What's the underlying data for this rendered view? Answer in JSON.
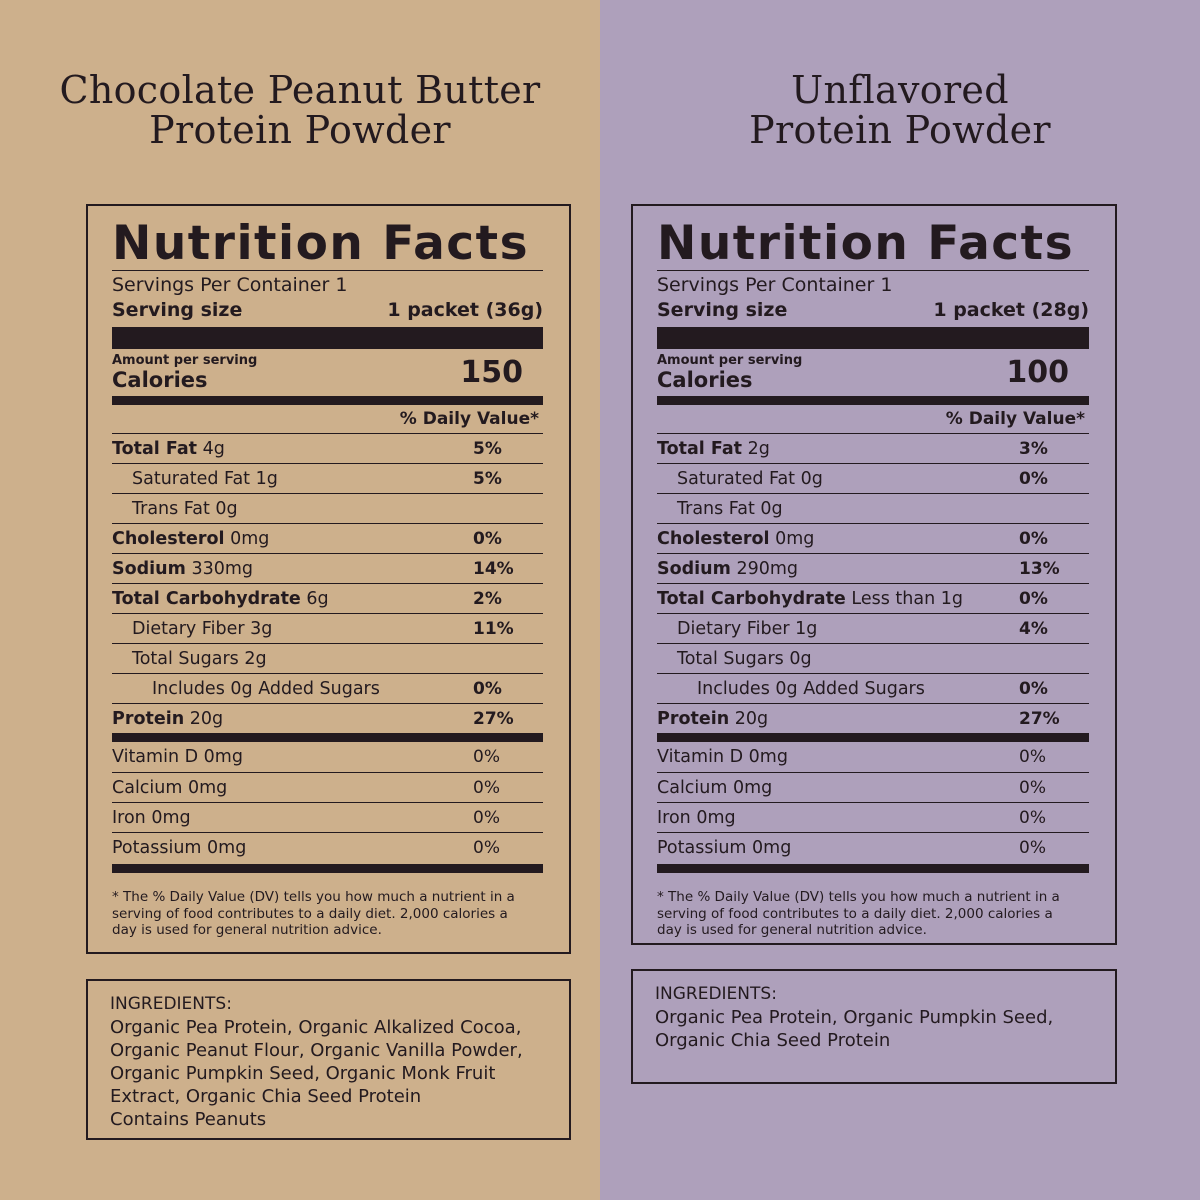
{
  "panels": [
    {
      "title_line1": "Chocolate Peanut Butter",
      "title_line2": "Protein Powder",
      "background": "#cdb08c",
      "nf_title": "Nutrition Facts",
      "servings_per_container": "Servings Per Container 1",
      "serving_size_label": "Serving size",
      "serving_size_value": "1 packet (36g)",
      "amount_per_serving": "Amount per serving",
      "calories_label": "Calories",
      "calories_value": "150",
      "dv_header": "% Daily Value*",
      "nutrients": [
        {
          "label": "Total Fat",
          "amount": "4g",
          "dv": "5%"
        },
        {
          "label": "Saturated Fat 1g",
          "amount": "",
          "dv": "5%"
        },
        {
          "label": "Trans Fat 0g",
          "amount": "",
          "dv": ""
        },
        {
          "label": "Cholesterol",
          "amount": "0mg",
          "dv": "0%"
        },
        {
          "label": "Sodium",
          "amount": "330mg",
          "dv": "14%"
        },
        {
          "label": "Total Carbohydrate",
          "amount": "6g",
          "dv": "2%"
        },
        {
          "label": "Dietary Fiber 3g",
          "amount": "",
          "dv": "11%"
        },
        {
          "label": "Total Sugars 2g",
          "amount": "",
          "dv": ""
        },
        {
          "label": "Includes 0g Added Sugars",
          "amount": "",
          "dv": "0%"
        },
        {
          "label": "Protein",
          "amount": "20g",
          "dv": "27%"
        }
      ],
      "vitamins": [
        {
          "label": "Vitamin D 0mg",
          "dv": "0%"
        },
        {
          "label": "Calcium 0mg",
          "dv": "0%"
        },
        {
          "label": "Iron 0mg",
          "dv": "0%"
        },
        {
          "label": "Potassium 0mg",
          "dv": "0%"
        }
      ],
      "footnote": "* The % Daily Value (DV) tells you how much a nutrient in a serving of food contributes to a daily diet. 2,000 calories a day is used for general nutrition advice.",
      "ingredients_label": "INGREDIENTS:",
      "ingredients_lines": [
        "Organic Pea Protein, Organic Alkalized Cocoa,",
        "Organic Peanut Flour, Organic Vanilla Powder,",
        "Organic Pumpkin Seed, Organic Monk Fruit",
        "Extract, Organic Chia Seed Protein",
        "Contains Peanuts"
      ]
    },
    {
      "title_line1": "Unflavored",
      "title_line2": "Protein Powder",
      "background": "#aea0bb",
      "nf_title": "Nutrition Facts",
      "servings_per_container": "Servings Per Container 1",
      "serving_size_label": "Serving size",
      "serving_size_value": "1 packet (28g)",
      "amount_per_serving": "Amount per serving",
      "calories_label": "Calories",
      "calories_value": "100",
      "dv_header": "% Daily Value*",
      "nutrients": [
        {
          "label": "Total Fat",
          "amount": "2g",
          "dv": "3%"
        },
        {
          "label": "Saturated Fat 0g",
          "amount": "",
          "dv": "0%"
        },
        {
          "label": "Trans Fat 0g",
          "amount": "",
          "dv": ""
        },
        {
          "label": "Cholesterol",
          "amount": "0mg",
          "dv": "0%"
        },
        {
          "label": "Sodium",
          "amount": "290mg",
          "dv": "13%"
        },
        {
          "label": "Total Carbohydrate",
          "amount": "Less than 1g",
          "dv": "0%"
        },
        {
          "label": "Dietary Fiber 1g",
          "amount": "",
          "dv": "4%"
        },
        {
          "label": "Total Sugars 0g",
          "amount": "",
          "dv": ""
        },
        {
          "label": "Includes 0g Added Sugars",
          "amount": "",
          "dv": "0%"
        },
        {
          "label": "Protein",
          "amount": "20g",
          "dv": "27%"
        }
      ],
      "vitamins": [
        {
          "label": "Vitamin D 0mg",
          "dv": "0%"
        },
        {
          "label": "Calcium 0mg",
          "dv": "0%"
        },
        {
          "label": "Iron 0mg",
          "dv": "0%"
        },
        {
          "label": "Potassium 0mg",
          "dv": "0%"
        }
      ],
      "footnote": "* The % Daily Value (DV) tells you how much a nutrient in a serving of food contributes to a daily diet. 2,000 calories a day is used for general nutrition advice.",
      "ingredients_label": "INGREDIENTS:",
      "ingredients_lines": [
        "Organic Pea Protein, Organic Pumpkin Seed,",
        "Organic Chia Seed Protein"
      ]
    }
  ]
}
